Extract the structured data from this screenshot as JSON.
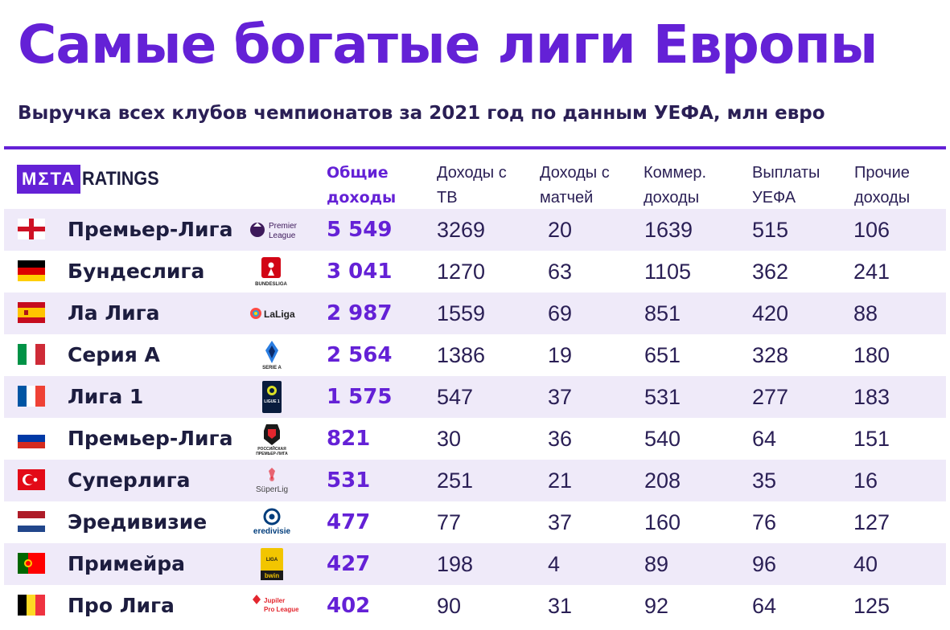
{
  "header": {
    "title": "Самые богатые лиги Европы",
    "subtitle": "Выручка всех клубов чемпионатов за 2021 год по данным УЕФА, млн евро",
    "logo_meta": "MΣTA",
    "logo_ratings": "RATINGS"
  },
  "columns": {
    "total": [
      "Общие",
      "доходы"
    ],
    "tv": [
      "Доходы с",
      "ТВ"
    ],
    "match": [
      "Доходы с",
      "матчей"
    ],
    "commercial": [
      "Коммер.",
      "доходы"
    ],
    "uefa": [
      "Выплаты",
      "УЕФА"
    ],
    "other": [
      "Прочие",
      "доходы"
    ]
  },
  "colors": {
    "accent": "#6421d6",
    "row_shade": "#efeaf9",
    "text": "#1d1d3f"
  },
  "chart_data": {
    "type": "table",
    "title": "Самые богатые лиги Европы",
    "subtitle": "Выручка всех клубов чемпионатов за 2021 год по данным УЕФА, млн евро",
    "rows": [
      {
        "flag": "england",
        "league": "Премьер-Лига",
        "badge": "premier-league",
        "badge_text": [
          "Premier",
          "League"
        ],
        "total": "5 549",
        "tv": "3269",
        "match": "20",
        "commercial": "1639",
        "uefa": "515",
        "other": "106"
      },
      {
        "flag": "germany",
        "league": "Бундеслига",
        "badge": "bundesliga",
        "badge_text": [
          "BUNDESLIGA"
        ],
        "total": "3 041",
        "tv": "1270",
        "match": "63",
        "commercial": "1105",
        "uefa": "362",
        "other": "241"
      },
      {
        "flag": "spain",
        "league": "Ла Лига",
        "badge": "laliga",
        "badge_text": [
          "LaLiga"
        ],
        "total": "2 987",
        "tv": "1559",
        "match": "69",
        "commercial": "851",
        "uefa": "420",
        "other": "88"
      },
      {
        "flag": "italy",
        "league": "Серия А",
        "badge": "serie-a",
        "badge_text": [
          "SERIE A"
        ],
        "total": "2 564",
        "tv": "1386",
        "match": "19",
        "commercial": "651",
        "uefa": "328",
        "other": "180"
      },
      {
        "flag": "france",
        "league": "Лига 1",
        "badge": "ligue-1",
        "badge_text": [
          "LIGUE 1"
        ],
        "total": "1 575",
        "tv": "547",
        "match": "37",
        "commercial": "531",
        "uefa": "277",
        "other": "183"
      },
      {
        "flag": "russia",
        "league": "Премьер-Лига",
        "badge": "rpl",
        "badge_text": [
          "РОССИЙСКАЯ",
          "ПРЕМЬЕР-ЛИГА"
        ],
        "total": "821",
        "tv": "30",
        "match": "36",
        "commercial": "540",
        "uefa": "64",
        "other": "151"
      },
      {
        "flag": "turkey",
        "league": "Суперлига",
        "badge": "superlig",
        "badge_text": [
          "SüperLig"
        ],
        "total": "531",
        "tv": "251",
        "match": "21",
        "commercial": "208",
        "uefa": "35",
        "other": "16"
      },
      {
        "flag": "netherlands",
        "league": "Эредивизие",
        "badge": "eredivisie",
        "badge_text": [
          "eredivisie"
        ],
        "total": "477",
        "tv": "77",
        "match": "37",
        "commercial": "160",
        "uefa": "76",
        "other": "127"
      },
      {
        "flag": "portugal",
        "league": "Примейра",
        "badge": "liga-portugal",
        "badge_text": [
          "LIGA",
          "bwin"
        ],
        "total": "427",
        "tv": "198",
        "match": "4",
        "commercial": "89",
        "uefa": "96",
        "other": "40"
      },
      {
        "flag": "belgium",
        "league": "Про Лига",
        "badge": "jupiler-pro-league",
        "badge_text": [
          "Jupiler",
          "Pro League"
        ],
        "total": "402",
        "tv": "90",
        "match": "31",
        "commercial": "92",
        "uefa": "64",
        "other": "125"
      }
    ]
  }
}
